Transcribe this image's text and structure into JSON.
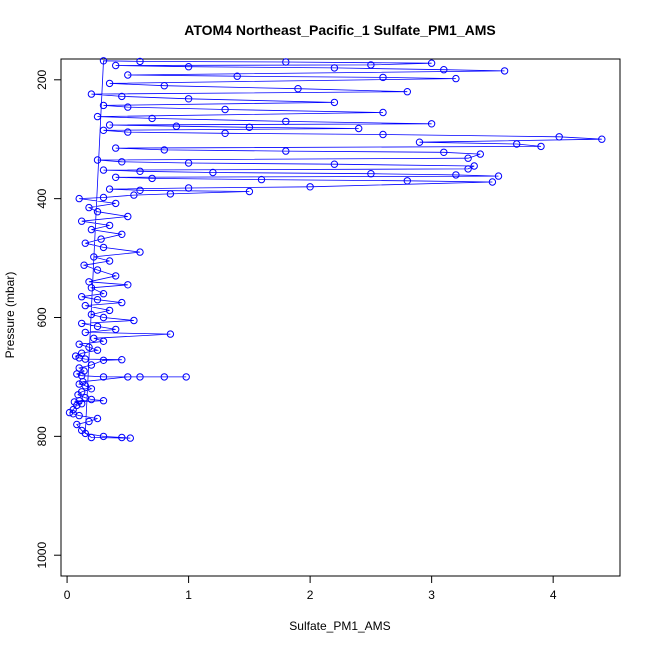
{
  "chart_data": {
    "type": "scatter",
    "title": "ATOM4 Northeast_Pacific_1 Sulfate_PM1_AMS",
    "xlabel": "Sulfate_PM1_AMS",
    "ylabel": "Pressure (mbar)",
    "xlim": [
      -0.05,
      4.55
    ],
    "ylim": [
      1035,
      165
    ],
    "y_reversed": true,
    "x_ticks": [
      0,
      1,
      2,
      3,
      4
    ],
    "y_ticks": [
      200,
      400,
      600,
      800,
      1000
    ],
    "x_tick_labels": [
      "0",
      "1",
      "2",
      "3",
      "4"
    ],
    "y_tick_labels": [
      "200",
      "400",
      "600",
      "800",
      "1000"
    ],
    "marker": "open-circle",
    "connected": true,
    "series_color": "#0000ff",
    "series": [
      {
        "points": [
          [
            0.02,
            760
          ],
          [
            0.05,
            755
          ],
          [
            0.08,
            748
          ],
          [
            0.12,
            745
          ],
          [
            0.1,
            740
          ],
          [
            0.06,
            742
          ],
          [
            0.3,
            740
          ],
          [
            0.2,
            738
          ],
          [
            0.15,
            735
          ],
          [
            0.09,
            730
          ],
          [
            0.12,
            725
          ],
          [
            0.2,
            720
          ],
          [
            0.15,
            715
          ],
          [
            0.1,
            712
          ],
          [
            0.13,
            708
          ],
          [
            0.5,
            700
          ],
          [
            0.8,
            700
          ],
          [
            0.98,
            700
          ],
          [
            0.6,
            700
          ],
          [
            0.3,
            700
          ],
          [
            0.12,
            698
          ],
          [
            0.08,
            695
          ],
          [
            0.14,
            690
          ],
          [
            0.1,
            685
          ],
          [
            0.2,
            680
          ],
          [
            0.3,
            672
          ],
          [
            0.45,
            671
          ],
          [
            0.15,
            670
          ],
          [
            0.1,
            668
          ],
          [
            0.07,
            665
          ],
          [
            0.12,
            660
          ],
          [
            0.25,
            655
          ],
          [
            0.18,
            650
          ],
          [
            0.1,
            645
          ],
          [
            0.3,
            640
          ],
          [
            0.22,
            635
          ],
          [
            0.85,
            628
          ],
          [
            0.15,
            625
          ],
          [
            0.4,
            620
          ],
          [
            0.25,
            615
          ],
          [
            0.12,
            610
          ],
          [
            0.55,
            605
          ],
          [
            0.3,
            600
          ],
          [
            0.2,
            595
          ],
          [
            0.35,
            588
          ],
          [
            0.15,
            580
          ],
          [
            0.45,
            575
          ],
          [
            0.25,
            570
          ],
          [
            0.12,
            565
          ],
          [
            0.3,
            560
          ],
          [
            0.2,
            550
          ],
          [
            0.5,
            545
          ],
          [
            0.18,
            540
          ],
          [
            0.4,
            530
          ],
          [
            0.25,
            520
          ],
          [
            0.14,
            512
          ],
          [
            0.35,
            505
          ],
          [
            0.22,
            498
          ],
          [
            0.6,
            490
          ],
          [
            0.3,
            482
          ],
          [
            0.15,
            475
          ],
          [
            0.28,
            468
          ],
          [
            0.45,
            460
          ],
          [
            0.2,
            452
          ],
          [
            0.35,
            445
          ],
          [
            0.12,
            438
          ],
          [
            0.5,
            430
          ],
          [
            0.25,
            422
          ],
          [
            0.18,
            415
          ],
          [
            0.4,
            408
          ],
          [
            0.1,
            400
          ],
          [
            0.3,
            398
          ],
          [
            0.55,
            394
          ],
          [
            0.85,
            392
          ],
          [
            1.5,
            388
          ],
          [
            0.6,
            386
          ],
          [
            0.35,
            384
          ],
          [
            1.0,
            382
          ],
          [
            2.0,
            380
          ],
          [
            3.5,
            372
          ],
          [
            2.8,
            370
          ],
          [
            1.6,
            368
          ],
          [
            0.7,
            366
          ],
          [
            0.4,
            364
          ],
          [
            3.55,
            362
          ],
          [
            3.2,
            360
          ],
          [
            2.5,
            358
          ],
          [
            1.2,
            356
          ],
          [
            0.6,
            354
          ],
          [
            0.3,
            352
          ],
          [
            3.3,
            350
          ],
          [
            3.35,
            345
          ],
          [
            2.2,
            342
          ],
          [
            1.0,
            340
          ],
          [
            0.45,
            338
          ],
          [
            0.25,
            335
          ],
          [
            3.3,
            332
          ],
          [
            3.4,
            325
          ],
          [
            3.1,
            322
          ],
          [
            1.8,
            320
          ],
          [
            0.8,
            318
          ],
          [
            0.4,
            315
          ],
          [
            3.9,
            312
          ],
          [
            3.7,
            308
          ],
          [
            2.9,
            305
          ],
          [
            4.4,
            300
          ],
          [
            4.05,
            296
          ],
          [
            2.6,
            292
          ],
          [
            1.3,
            290
          ],
          [
            0.5,
            288
          ],
          [
            0.3,
            285
          ],
          [
            2.4,
            282
          ],
          [
            1.5,
            280
          ],
          [
            0.9,
            278
          ],
          [
            0.35,
            276
          ],
          [
            3.0,
            274
          ],
          [
            1.8,
            270
          ],
          [
            0.7,
            265
          ],
          [
            0.25,
            262
          ],
          [
            2.6,
            255
          ],
          [
            1.3,
            250
          ],
          [
            0.5,
            246
          ],
          [
            0.3,
            243
          ],
          [
            2.2,
            238
          ],
          [
            1.0,
            232
          ],
          [
            0.45,
            228
          ],
          [
            0.2,
            224
          ],
          [
            2.8,
            220
          ],
          [
            1.9,
            215
          ],
          [
            0.8,
            210
          ],
          [
            0.35,
            206
          ],
          [
            3.2,
            198
          ],
          [
            2.6,
            196
          ],
          [
            1.4,
            194
          ],
          [
            0.5,
            192
          ],
          [
            3.6,
            185
          ],
          [
            3.1,
            183
          ],
          [
            2.2,
            180
          ],
          [
            1.0,
            178
          ],
          [
            0.4,
            176
          ],
          [
            2.5,
            175
          ],
          [
            3.0,
            172
          ],
          [
            1.8,
            170
          ],
          [
            0.6,
            169
          ],
          [
            0.3,
            168
          ],
          [
            0.15,
            795
          ],
          [
            0.3,
            800
          ],
          [
            0.45,
            802
          ],
          [
            0.52,
            803
          ],
          [
            0.2,
            802
          ],
          [
            0.12,
            790
          ],
          [
            0.08,
            780
          ],
          [
            0.18,
            775
          ],
          [
            0.25,
            770
          ],
          [
            0.1,
            765
          ],
          [
            0.05,
            762
          ]
        ]
      }
    ]
  }
}
